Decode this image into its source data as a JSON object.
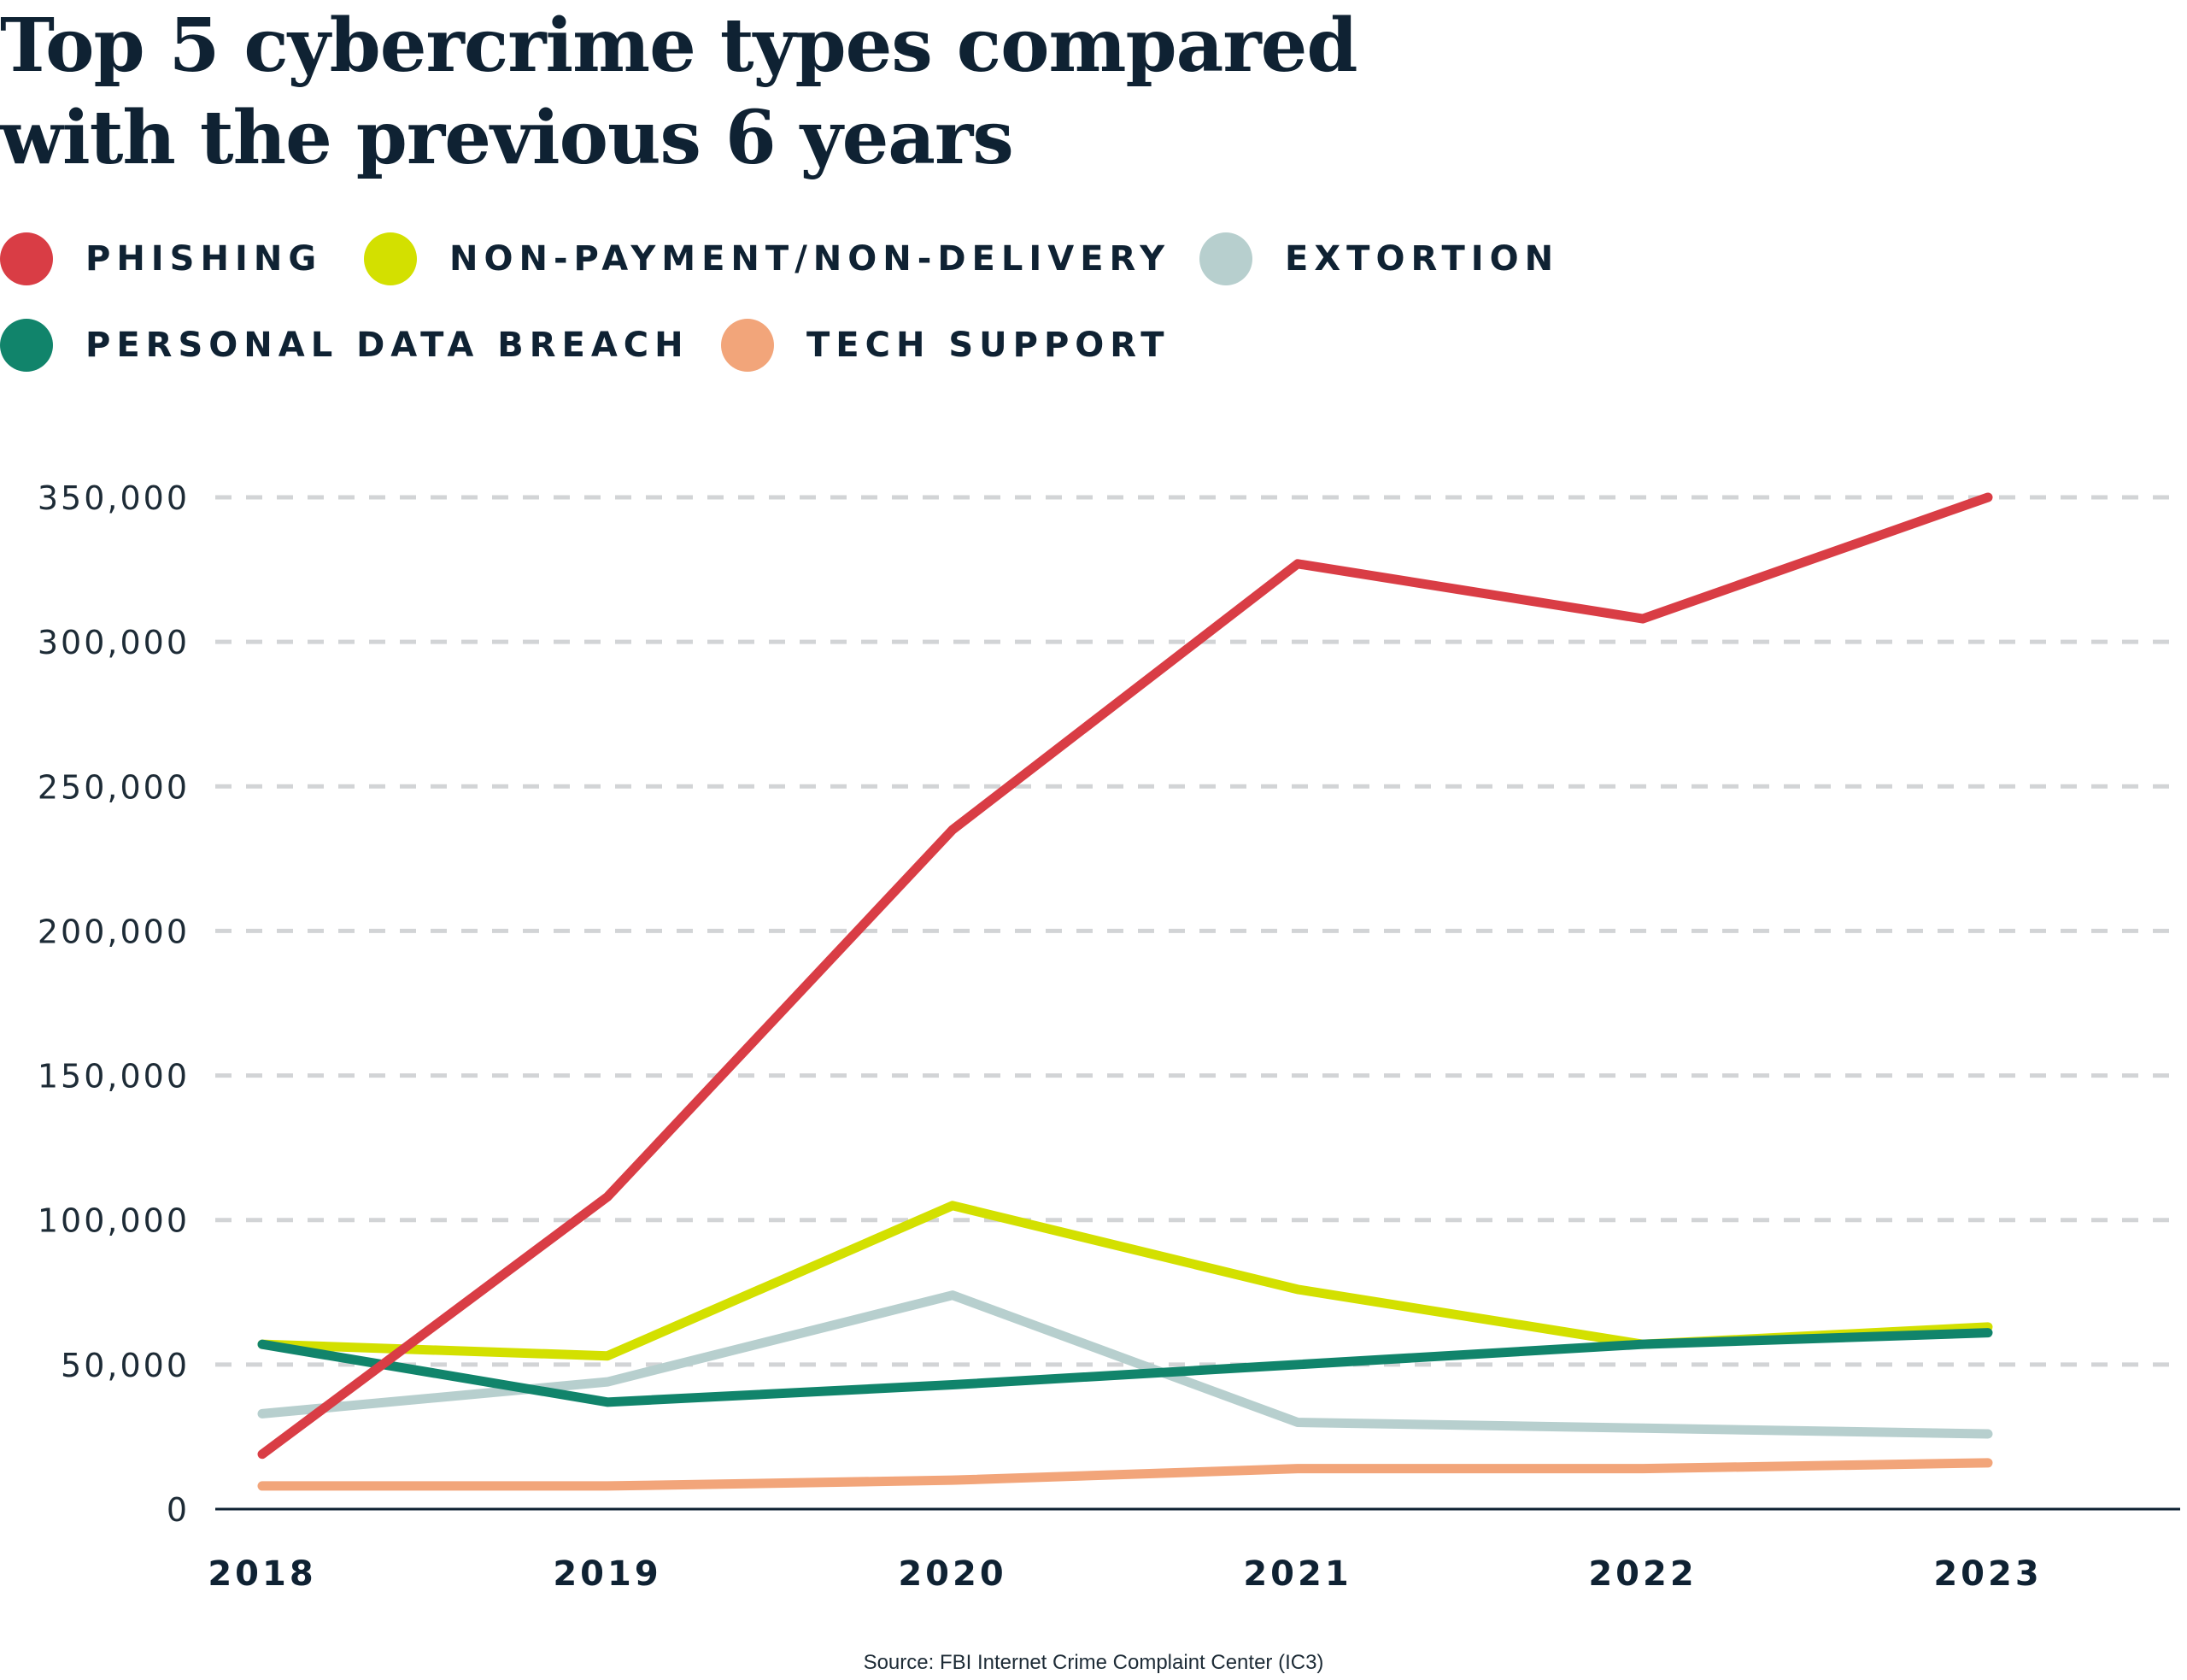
{
  "title": "Top 5 cybercrime types compared with the previous 6 years",
  "source": "Source: FBI Internet Crime Complaint Center (IC3)",
  "chart_data": {
    "type": "line",
    "title": "Top 5 cybercrime types compared with the previous 6 years",
    "xlabel": "",
    "ylabel": "",
    "x": [
      "2018",
      "2019",
      "2020",
      "2021",
      "2022",
      "2023"
    ],
    "ylim": [
      0,
      350000
    ],
    "yticks": [
      0,
      50000,
      100000,
      150000,
      200000,
      250000,
      300000,
      350000
    ],
    "ytick_labels": [
      "0",
      "50,000",
      "100,000",
      "150,000",
      "200,000",
      "250,000",
      "300,000",
      "350,000"
    ],
    "grid": "horizontal dashed",
    "legend_position": "top-left",
    "series": [
      {
        "name": "PHISHING",
        "color": "#d93d45",
        "values": [
          19000,
          108000,
          235000,
          327000,
          308000,
          350000
        ]
      },
      {
        "name": "NON-PAYMENT/NON-DELIVERY",
        "color": "#d3e000",
        "values": [
          57000,
          53000,
          105000,
          76000,
          57000,
          63000
        ]
      },
      {
        "name": "EXTORTION",
        "color": "#b7cfce",
        "values": [
          33000,
          44000,
          74000,
          30000,
          28000,
          26000
        ]
      },
      {
        "name": "PERSONAL DATA BREACH",
        "color": "#11846b",
        "values": [
          57000,
          37000,
          43000,
          50000,
          57000,
          61000
        ]
      },
      {
        "name": "TECH SUPPORT",
        "color": "#f2a57a",
        "values": [
          8000,
          8000,
          10000,
          14000,
          14000,
          16000
        ]
      }
    ]
  }
}
